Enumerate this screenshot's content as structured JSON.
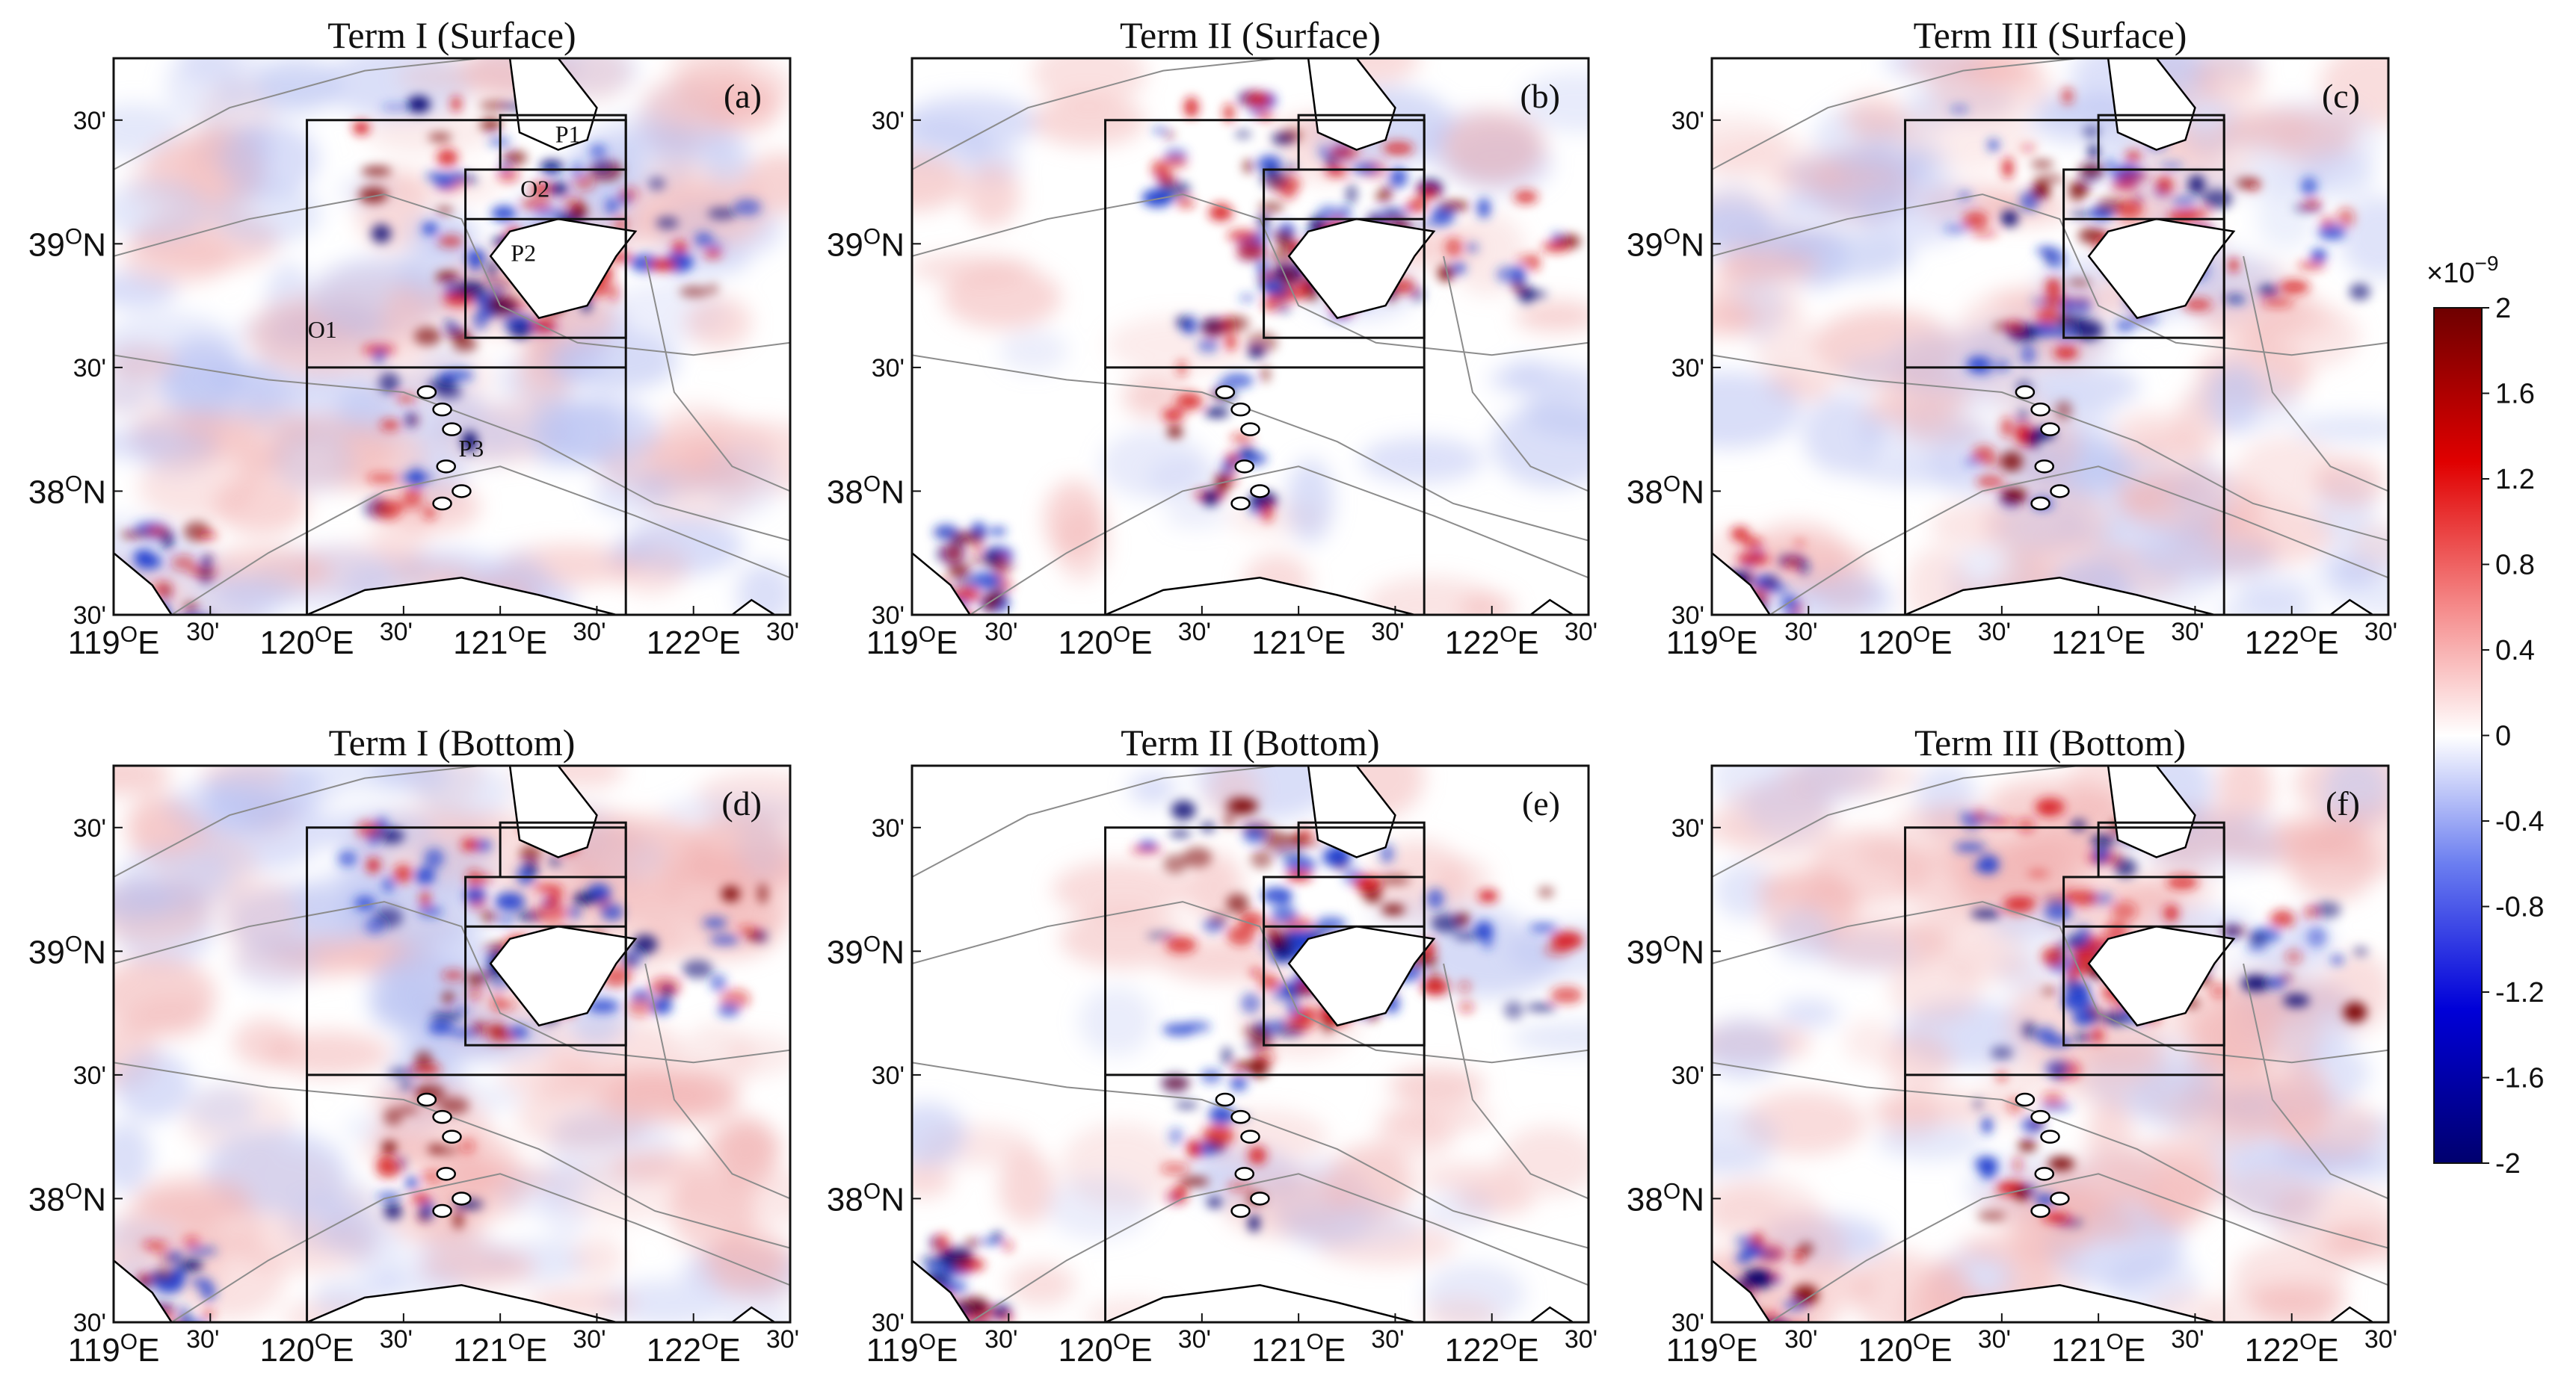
{
  "chart_data": {
    "type": "heatmap",
    "figure_panels": [
      {
        "letter": "(a)",
        "title": "Term I (Surface)",
        "term": "Term I",
        "layer": "Surface",
        "region_labels": [
          "P1",
          "O2",
          "P2",
          "O1",
          "P3"
        ]
      },
      {
        "letter": "(b)",
        "title": "Term II (Surface)",
        "term": "Term II",
        "layer": "Surface",
        "region_labels": []
      },
      {
        "letter": "(c)",
        "title": "Term III (Surface)",
        "term": "Term III",
        "layer": "Surface",
        "region_labels": []
      },
      {
        "letter": "(d)",
        "title": "Term I (Bottom)",
        "term": "Term I",
        "layer": "Bottom",
        "region_labels": []
      },
      {
        "letter": "(e)",
        "title": "Term II (Bottom)",
        "term": "Term II",
        "layer": "Bottom",
        "region_labels": []
      },
      {
        "letter": "(f)",
        "title": "Term III (Bottom)",
        "term": "Term III",
        "layer": "Bottom",
        "region_labels": []
      }
    ],
    "x_axis": {
      "range_deg_E": [
        119.0,
        122.5
      ],
      "ticks": [
        {
          "value": 119.0,
          "deg": "119",
          "suffix": "E",
          "label": ""
        },
        {
          "value": 119.5,
          "deg": "",
          "suffix": "",
          "label": "30'"
        },
        {
          "value": 120.0,
          "deg": "120",
          "suffix": "E",
          "label": ""
        },
        {
          "value": 120.5,
          "deg": "",
          "suffix": "",
          "label": "30'"
        },
        {
          "value": 121.0,
          "deg": "121",
          "suffix": "E",
          "label": ""
        },
        {
          "value": 121.5,
          "deg": "",
          "suffix": "",
          "label": "30'"
        },
        {
          "value": 122.0,
          "deg": "122",
          "suffix": "E",
          "label": ""
        },
        {
          "value": 122.5,
          "deg": "",
          "suffix": "",
          "label": "30'"
        }
      ]
    },
    "y_axis": {
      "range_deg_N": [
        37.5,
        39.75
      ],
      "ticks": [
        {
          "value": 39.5,
          "deg": "",
          "suffix": "",
          "label": "30'"
        },
        {
          "value": 39.0,
          "deg": "39",
          "suffix": "N",
          "label": ""
        },
        {
          "value": 38.5,
          "deg": "",
          "suffix": "",
          "label": "30'"
        },
        {
          "value": 38.0,
          "deg": "38",
          "suffix": "N",
          "label": ""
        },
        {
          "value": 37.5,
          "deg": "",
          "suffix": "",
          "label": "30'"
        }
      ]
    },
    "boxes_deg": {
      "O1": {
        "lon": [
          120.0,
          121.65
        ],
        "lat": [
          37.5,
          39.5
        ]
      },
      "O2": {
        "lon": [
          120.82,
          121.65
        ],
        "lat": [
          38.62,
          39.3
        ]
      },
      "P1": {
        "lon": [
          121.0,
          121.65
        ],
        "lat": [
          39.3,
          39.52
        ]
      },
      "O1_divider_lat": 38.5,
      "O2_divider_lat": 39.1
    },
    "label_positions_deg": {
      "P1": [
        121.35,
        39.41
      ],
      "O2": [
        121.18,
        39.19
      ],
      "P2": [
        121.12,
        38.93
      ],
      "O1": [
        120.08,
        38.62
      ],
      "P3": [
        120.85,
        38.14
      ]
    },
    "colorbar": {
      "exponent_label": "×10",
      "exponent_power": "−9",
      "min": -2,
      "max": 2,
      "ticks": [
        2,
        1.6,
        1.2,
        0.8,
        0.4,
        0,
        -0.4,
        -0.8,
        -1.2,
        -1.6,
        -2
      ],
      "tick_labels": [
        "2",
        "1.6",
        "1.2",
        "0.8",
        "0.4",
        "0",
        "-0.4",
        "-0.8",
        "-1.2",
        "-1.6",
        "-2"
      ],
      "colormap": "blue-white-red"
    },
    "colors": {
      "red": "#d7191c",
      "blue": "#1f3fcf",
      "dark_red": "#7a0000",
      "dark_blue": "#00006e",
      "contour": "#8c8c8c",
      "coast": "#000000"
    }
  }
}
